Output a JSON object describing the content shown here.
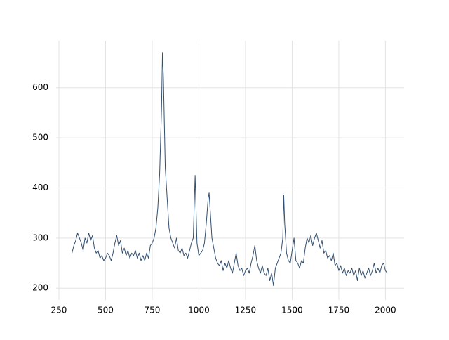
{
  "chart_data": {
    "type": "line",
    "x": [
      320,
      330,
      340,
      350,
      360,
      370,
      380,
      390,
      400,
      410,
      420,
      430,
      440,
      450,
      460,
      470,
      480,
      490,
      500,
      510,
      520,
      530,
      540,
      550,
      560,
      570,
      580,
      590,
      600,
      610,
      620,
      630,
      640,
      650,
      660,
      670,
      680,
      690,
      700,
      710,
      720,
      730,
      740,
      750,
      760,
      770,
      780,
      790,
      800,
      805,
      810,
      820,
      830,
      840,
      850,
      860,
      870,
      880,
      890,
      900,
      910,
      920,
      930,
      940,
      950,
      960,
      970,
      980,
      990,
      1000,
      1010,
      1020,
      1030,
      1040,
      1050,
      1055,
      1060,
      1070,
      1080,
      1090,
      1100,
      1110,
      1120,
      1130,
      1140,
      1150,
      1160,
      1170,
      1180,
      1190,
      1200,
      1210,
      1220,
      1230,
      1240,
      1250,
      1260,
      1270,
      1280,
      1290,
      1300,
      1310,
      1320,
      1330,
      1340,
      1350,
      1360,
      1370,
      1380,
      1390,
      1400,
      1410,
      1420,
      1430,
      1440,
      1450,
      1455,
      1460,
      1470,
      1480,
      1490,
      1500,
      1510,
      1520,
      1530,
      1540,
      1550,
      1560,
      1570,
      1580,
      1590,
      1600,
      1610,
      1620,
      1630,
      1640,
      1650,
      1660,
      1670,
      1680,
      1690,
      1700,
      1710,
      1720,
      1730,
      1740,
      1750,
      1760,
      1770,
      1780,
      1790,
      1800,
      1810,
      1820,
      1830,
      1840,
      1850,
      1860,
      1870,
      1880,
      1890,
      1900,
      1910,
      1920,
      1930,
      1940,
      1950,
      1960,
      1970,
      1980,
      1990,
      2000,
      2010
    ],
    "series": [
      {
        "color": "#34506f",
        "values": [
          270,
          285,
          295,
          310,
          300,
          290,
          275,
          300,
          290,
          310,
          295,
          305,
          280,
          270,
          275,
          260,
          265,
          255,
          260,
          270,
          265,
          255,
          270,
          290,
          305,
          285,
          295,
          270,
          280,
          265,
          275,
          260,
          270,
          265,
          275,
          260,
          270,
          255,
          265,
          255,
          270,
          260,
          285,
          290,
          300,
          320,
          360,
          430,
          560,
          670,
          620,
          440,
          380,
          320,
          300,
          290,
          280,
          300,
          275,
          270,
          280,
          265,
          270,
          260,
          275,
          290,
          300,
          425,
          290,
          265,
          270,
          275,
          290,
          330,
          380,
          390,
          360,
          300,
          280,
          260,
          250,
          245,
          255,
          235,
          250,
          240,
          255,
          240,
          230,
          250,
          270,
          245,
          235,
          240,
          225,
          235,
          240,
          230,
          250,
          265,
          285,
          255,
          240,
          230,
          245,
          230,
          225,
          240,
          215,
          230,
          205,
          240,
          250,
          260,
          270,
          300,
          385,
          330,
          270,
          255,
          250,
          275,
          300,
          255,
          250,
          240,
          255,
          250,
          280,
          300,
          290,
          305,
          285,
          300,
          310,
          295,
          280,
          295,
          270,
          275,
          260,
          265,
          255,
          270,
          245,
          250,
          235,
          245,
          230,
          240,
          225,
          235,
          230,
          240,
          225,
          235,
          215,
          240,
          225,
          235,
          220,
          230,
          240,
          225,
          235,
          250,
          230,
          240,
          230,
          245,
          250,
          235,
          230
        ]
      }
    ],
    "xlim": [
      235,
      2100
    ],
    "ylim": [
      176.5,
      693.5
    ],
    "xticks": [
      250,
      500,
      750,
      1000,
      1250,
      1500,
      1750,
      2000
    ],
    "yticks": [
      200,
      300,
      400,
      500,
      600
    ],
    "grid": true
  }
}
